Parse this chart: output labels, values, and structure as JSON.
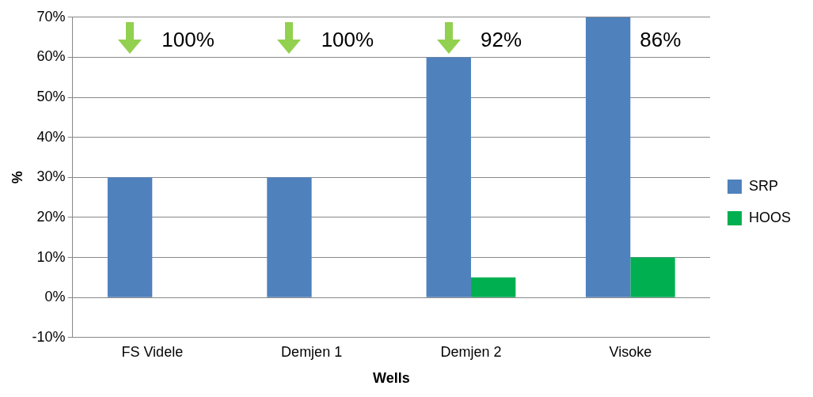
{
  "chart_data": {
    "type": "bar",
    "xlabel": "Wells",
    "ylabel": "%",
    "categories": [
      "FS Videle",
      "Demjen 1",
      "Demjen 2",
      "Visoke"
    ],
    "series": [
      {
        "name": "SRP",
        "color": "#4f81bd",
        "values": [
          30,
          30,
          60,
          70
        ]
      },
      {
        "name": "HOOS",
        "color": "#00b050",
        "values": [
          0,
          0,
          5,
          10
        ]
      }
    ],
    "ylim": [
      -10,
      70
    ],
    "yticks": [
      {
        "value": -10,
        "label": "-10%"
      },
      {
        "value": 0,
        "label": "0%"
      },
      {
        "value": 10,
        "label": "10%"
      },
      {
        "value": 20,
        "label": "20%"
      },
      {
        "value": 30,
        "label": "30%"
      },
      {
        "value": 40,
        "label": "40%"
      },
      {
        "value": 50,
        "label": "50%"
      },
      {
        "value": 60,
        "label": "60%"
      },
      {
        "value": 70,
        "label": "70%"
      }
    ],
    "grid": "y",
    "legend": "right",
    "annotations": [
      "100%",
      "100%",
      "92%",
      "86%"
    ]
  }
}
